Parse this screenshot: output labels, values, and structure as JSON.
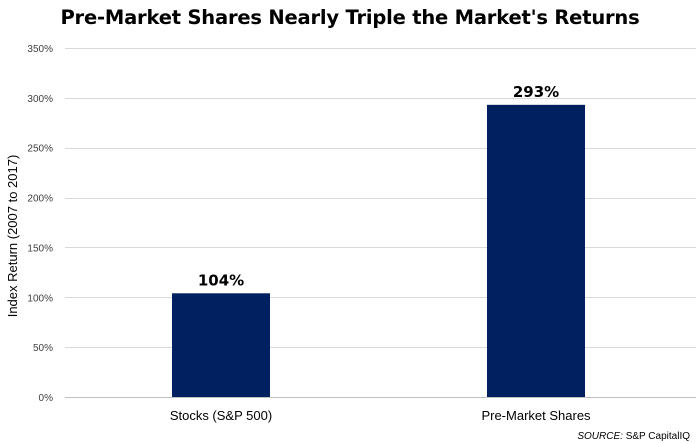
{
  "chart_data": {
    "type": "bar",
    "title": "Pre-Market Shares Nearly Triple the Market's Returns",
    "ylabel": "Index Return (2007 to 2017)",
    "xlabel": "",
    "categories": [
      "Stocks (S&P 500)",
      "Pre-Market Shares"
    ],
    "values": [
      104,
      293
    ],
    "data_labels": [
      "104%",
      "293%"
    ],
    "ylim": [
      0,
      350
    ],
    "yticks": [
      0,
      50,
      100,
      150,
      200,
      250,
      300,
      350
    ],
    "ytick_labels": [
      "0%",
      "50%",
      "100%",
      "150%",
      "200%",
      "250%",
      "300%",
      "350%"
    ],
    "grid": true,
    "legend": "none",
    "bar_color": "#002060",
    "grid_color": "#d9d9d9"
  },
  "source": {
    "label": "SOURCE:",
    "text": "S&P CapitalIQ"
  }
}
